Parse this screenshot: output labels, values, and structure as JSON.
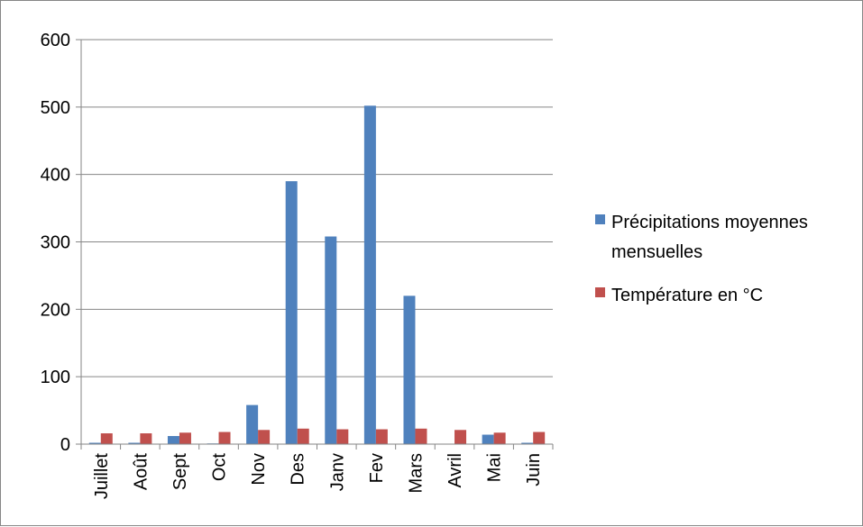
{
  "chart_data": {
    "type": "bar",
    "title": "",
    "xlabel": "",
    "ylabel": "",
    "ylim": [
      0,
      600
    ],
    "yticks": [
      0,
      100,
      200,
      300,
      400,
      500,
      600
    ],
    "grid": true,
    "legend_position": "right",
    "categories": [
      "Juillet",
      "Août",
      "Sept",
      "Oct",
      "Nov",
      "Des",
      "Janv",
      "Fev",
      "Mars",
      "Avril",
      "Mai",
      "Juin"
    ],
    "series": [
      {
        "name": "Précipitations moyennes mensuelles",
        "legend_lines": [
          "Précipitations moyennes",
          "mensuelles"
        ],
        "color": "#4f81bd",
        "values": [
          2,
          2,
          12,
          1,
          58,
          390,
          308,
          502,
          220,
          0,
          14,
          2
        ]
      },
      {
        "name": "Température en °C",
        "legend_lines": [
          "Température en °C"
        ],
        "color": "#c0504d",
        "values": [
          16,
          16,
          17,
          18,
          21,
          23,
          22,
          22,
          23,
          21,
          17,
          18
        ]
      }
    ]
  }
}
